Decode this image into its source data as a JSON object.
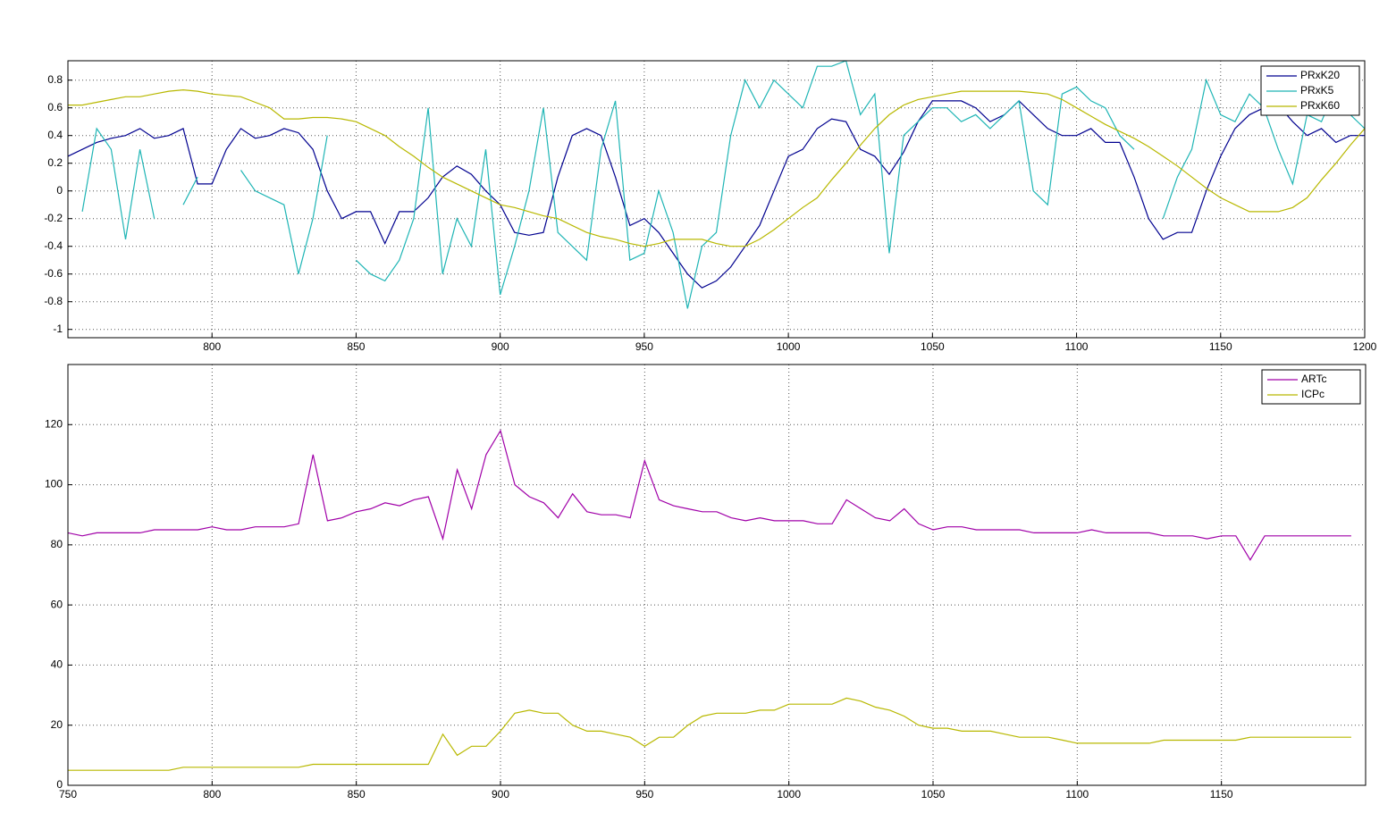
{
  "chart_data": [
    {
      "type": "line",
      "x": [
        750,
        755,
        760,
        765,
        770,
        775,
        780,
        785,
        790,
        795,
        800,
        805,
        810,
        815,
        820,
        825,
        830,
        835,
        840,
        845,
        850,
        855,
        860,
        865,
        870,
        875,
        880,
        885,
        890,
        895,
        900,
        905,
        910,
        915,
        920,
        925,
        930,
        935,
        940,
        945,
        950,
        955,
        960,
        965,
        970,
        975,
        980,
        985,
        990,
        995,
        1000,
        1005,
        1010,
        1015,
        1020,
        1025,
        1030,
        1035,
        1040,
        1045,
        1050,
        1055,
        1060,
        1065,
        1070,
        1075,
        1080,
        1085,
        1090,
        1095,
        1100,
        1105,
        1110,
        1115,
        1120,
        1125,
        1130,
        1135,
        1140,
        1145,
        1150,
        1155,
        1160,
        1165,
        1170,
        1175,
        1180,
        1185,
        1190,
        1195,
        1200
      ],
      "series": [
        {
          "name": "PRxK20",
          "color": "#00008f",
          "values": [
            0.25,
            0.3,
            0.35,
            0.38,
            0.4,
            0.45,
            0.38,
            0.4,
            0.45,
            0.05,
            0.05,
            0.3,
            0.45,
            0.38,
            0.4,
            0.45,
            0.42,
            0.3,
            0,
            -0.2,
            -0.15,
            -0.15,
            -0.38,
            -0.15,
            -0.15,
            -0.05,
            0.1,
            0.18,
            0.12,
            0,
            -0.1,
            -0.3,
            -0.32,
            -0.3,
            0.1,
            0.4,
            0.45,
            0.4,
            0.1,
            -0.25,
            -0.2,
            -0.3,
            -0.45,
            -0.6,
            -0.7,
            -0.65,
            -0.55,
            -0.4,
            -0.25,
            0,
            0.25,
            0.3,
            0.45,
            0.52,
            0.5,
            0.3,
            0.25,
            0.12,
            0.28,
            0.5,
            0.65,
            0.65,
            0.65,
            0.6,
            0.5,
            0.55,
            0.65,
            0.55,
            0.45,
            0.4,
            0.4,
            0.45,
            0.35,
            0.35,
            0.1,
            -0.2,
            -0.35,
            -0.3,
            -0.3,
            0,
            0.25,
            0.45,
            0.55,
            0.6,
            0.62,
            0.5,
            0.4,
            0.45,
            0.35,
            0.4,
            0.4
          ]
        },
        {
          "name": "PRxK5",
          "color": "#1fb5b5",
          "values": [
            null,
            -0.15,
            0.45,
            0.3,
            -0.35,
            0.3,
            -0.2,
            null,
            -0.1,
            0.1,
            null,
            null,
            0.15,
            0,
            -0.05,
            -0.1,
            -0.6,
            -0.2,
            0.4,
            null,
            -0.5,
            -0.6,
            -0.65,
            -0.5,
            -0.2,
            0.6,
            -0.6,
            -0.2,
            -0.4,
            0.3,
            -0.75,
            -0.4,
            0,
            0.6,
            -0.3,
            -0.4,
            -0.5,
            0.3,
            0.65,
            -0.5,
            -0.45,
            0,
            -0.3,
            -0.85,
            -0.4,
            -0.3,
            0.4,
            0.8,
            0.6,
            0.8,
            0.7,
            0.6,
            0.9,
            0.9,
            0.94,
            0.55,
            0.7,
            -0.45,
            0.4,
            0.5,
            0.6,
            0.6,
            0.5,
            0.55,
            0.45,
            0.55,
            0.65,
            0,
            -0.1,
            0.7,
            0.75,
            0.65,
            0.6,
            0.4,
            0.3,
            null,
            -0.2,
            0.1,
            0.3,
            0.8,
            0.55,
            0.5,
            0.7,
            0.6,
            0.3,
            0.05,
            0.55,
            0.5,
            0.75,
            0.55,
            0.45
          ]
        },
        {
          "name": "PRxK60",
          "color": "#b8b800",
          "values": [
            0.62,
            0.62,
            0.64,
            0.66,
            0.68,
            0.68,
            0.7,
            0.72,
            0.73,
            0.72,
            0.7,
            0.69,
            0.68,
            0.64,
            0.6,
            0.52,
            0.52,
            0.53,
            0.53,
            0.52,
            0.5,
            0.45,
            0.4,
            0.32,
            0.25,
            0.17,
            0.1,
            0.05,
            0,
            -0.05,
            -0.1,
            -0.12,
            -0.15,
            -0.18,
            -0.2,
            -0.25,
            -0.3,
            -0.33,
            -0.35,
            -0.38,
            -0.4,
            -0.38,
            -0.35,
            -0.35,
            -0.35,
            -0.38,
            -0.4,
            -0.4,
            -0.35,
            -0.28,
            -0.2,
            -0.12,
            -0.05,
            0.08,
            0.2,
            0.33,
            0.45,
            0.55,
            0.62,
            0.66,
            0.68,
            0.7,
            0.72,
            0.72,
            0.72,
            0.72,
            0.72,
            0.71,
            0.7,
            0.66,
            0.6,
            0.54,
            0.48,
            0.43,
            0.38,
            0.32,
            0.25,
            0.18,
            0.1,
            0.02,
            -0.05,
            -0.1,
            -0.15,
            -0.15,
            -0.15,
            -0.12,
            -0.05,
            0.08,
            0.2,
            0.33,
            0.45
          ]
        }
      ],
      "xlim": [
        750,
        1200
      ],
      "xticks": [
        800,
        850,
        900,
        950,
        1000,
        1050,
        1100,
        1150,
        1200
      ],
      "ylim": [
        -1.06,
        0.94
      ],
      "yticks": [
        -1,
        -0.8,
        -0.6,
        -0.4,
        -0.2,
        0,
        0.2,
        0.4,
        0.6,
        0.8
      ],
      "grid": true,
      "legend": "top-right"
    },
    {
      "type": "line",
      "x": [
        750,
        755,
        760,
        765,
        770,
        775,
        780,
        785,
        790,
        795,
        800,
        805,
        810,
        815,
        820,
        825,
        830,
        835,
        840,
        845,
        850,
        855,
        860,
        865,
        870,
        875,
        880,
        885,
        890,
        895,
        900,
        905,
        910,
        915,
        920,
        925,
        930,
        935,
        940,
        945,
        950,
        955,
        960,
        965,
        970,
        975,
        980,
        985,
        990,
        995,
        1000,
        1005,
        1010,
        1015,
        1020,
        1025,
        1030,
        1035,
        1040,
        1045,
        1050,
        1055,
        1060,
        1065,
        1070,
        1075,
        1080,
        1085,
        1090,
        1095,
        1100,
        1105,
        1110,
        1115,
        1120,
        1125,
        1130,
        1135,
        1140,
        1145,
        1150,
        1155,
        1160,
        1165,
        1170,
        1175,
        1180,
        1185,
        1190,
        1195
      ],
      "series": [
        {
          "name": "ARTc",
          "color": "#a000a8",
          "values": [
            84,
            83,
            84,
            84,
            84,
            84,
            85,
            85,
            85,
            85,
            86,
            85,
            85,
            86,
            86,
            86,
            87,
            110,
            88,
            89,
            91,
            92,
            94,
            93,
            95,
            96,
            82,
            105,
            92,
            110,
            118,
            100,
            96,
            94,
            89,
            97,
            91,
            90,
            90,
            89,
            108,
            95,
            93,
            92,
            91,
            91,
            89,
            88,
            89,
            88,
            88,
            88,
            87,
            87,
            95,
            92,
            89,
            88,
            92,
            87,
            85,
            86,
            86,
            85,
            85,
            85,
            85,
            84,
            84,
            84,
            84,
            85,
            84,
            84,
            84,
            84,
            83,
            83,
            83,
            82,
            83,
            83,
            75,
            83,
            83,
            83,
            83,
            83,
            83,
            83
          ]
        },
        {
          "name": "ICPc",
          "color": "#b8b800",
          "values": [
            5,
            5,
            5,
            5,
            5,
            5,
            5,
            5,
            6,
            6,
            6,
            6,
            6,
            6,
            6,
            6,
            6,
            7,
            7,
            7,
            7,
            7,
            7,
            7,
            7,
            7,
            17,
            10,
            13,
            13,
            18,
            24,
            25,
            24,
            24,
            20,
            18,
            18,
            17,
            16,
            13,
            16,
            16,
            20,
            23,
            24,
            24,
            24,
            25,
            25,
            27,
            27,
            27,
            27,
            29,
            28,
            26,
            25,
            23,
            20,
            19,
            19,
            18,
            18,
            18,
            17,
            16,
            16,
            16,
            15,
            14,
            14,
            14,
            14,
            14,
            14,
            15,
            15,
            15,
            15,
            15,
            15,
            16,
            16,
            16,
            16,
            16,
            16,
            16,
            16
          ]
        }
      ],
      "xlim": [
        750,
        1200
      ],
      "xticks": [
        750,
        800,
        850,
        900,
        950,
        1000,
        1050,
        1100,
        1150
      ],
      "ylim": [
        0,
        140
      ],
      "yticks": [
        0,
        20,
        40,
        60,
        80,
        100,
        120
      ],
      "grid": true,
      "legend": "top-right"
    }
  ]
}
